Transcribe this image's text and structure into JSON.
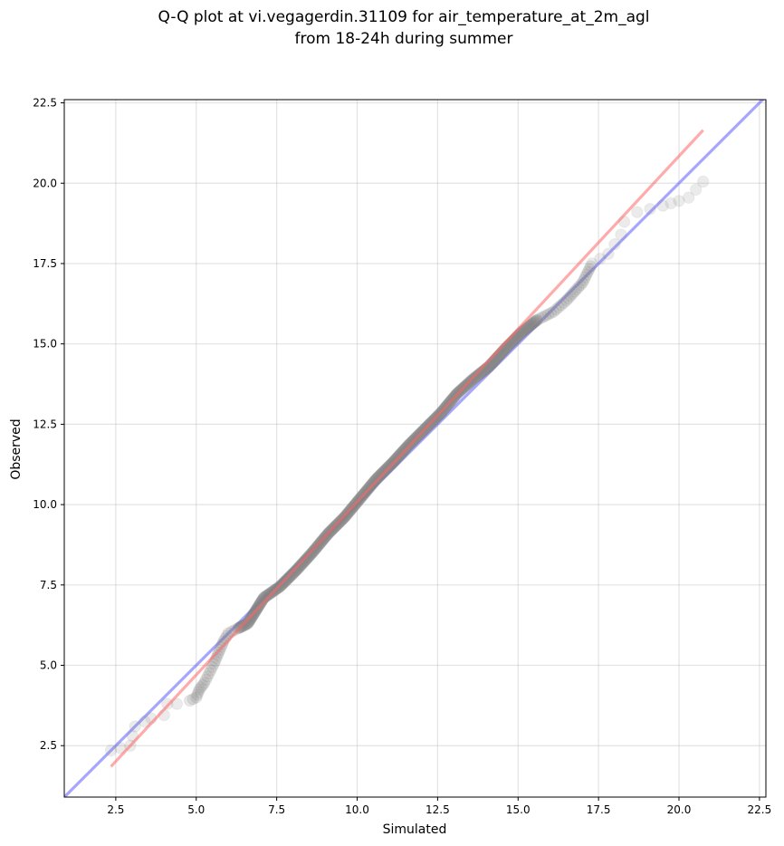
{
  "chart_data": {
    "type": "scatter",
    "title": "Q-Q plot at vi.vegagerdin.31109 for air_temperature_at_2m_agl",
    "subtitle": "from 18-24h during summer",
    "xlabel": "Simulated",
    "ylabel": "Observed",
    "xlim": [
      0.9,
      22.7
    ],
    "ylim": [
      0.9,
      22.6
    ],
    "xticks": [
      "2.5",
      "5.0",
      "7.5",
      "10.0",
      "12.5",
      "15.0",
      "17.5",
      "20.0",
      "22.5"
    ],
    "yticks": [
      "2.5",
      "5.0",
      "7.5",
      "10.0",
      "12.5",
      "15.0",
      "17.5",
      "20.0",
      "22.5"
    ],
    "grid": true,
    "colors": {
      "points": "#808080",
      "fit_line": "#ff6666",
      "identity_line": "#6b6bff"
    },
    "quantile_points": [
      [
        2.35,
        2.35
      ],
      [
        2.95,
        2.5
      ],
      [
        3.1,
        3.1
      ],
      [
        3.4,
        3.25
      ],
      [
        3.6,
        3.35
      ],
      [
        4.0,
        3.45
      ],
      [
        4.1,
        3.8
      ],
      [
        4.4,
        3.8
      ],
      [
        4.8,
        3.9
      ],
      [
        5.0,
        4.0
      ],
      [
        5.1,
        4.25
      ],
      [
        5.25,
        4.45
      ],
      [
        5.4,
        4.75
      ],
      [
        5.55,
        5.05
      ],
      [
        5.7,
        5.4
      ],
      [
        5.85,
        5.75
      ],
      [
        6.0,
        6.0
      ],
      [
        6.3,
        6.15
      ],
      [
        6.6,
        6.3
      ],
      [
        6.85,
        6.7
      ],
      [
        7.1,
        7.1
      ],
      [
        7.6,
        7.45
      ],
      [
        8.1,
        7.95
      ],
      [
        8.6,
        8.5
      ],
      [
        9.1,
        9.1
      ],
      [
        9.6,
        9.6
      ],
      [
        10.1,
        10.2
      ],
      [
        10.6,
        10.8
      ],
      [
        11.1,
        11.3
      ],
      [
        11.6,
        11.85
      ],
      [
        12.1,
        12.35
      ],
      [
        12.6,
        12.85
      ],
      [
        13.1,
        13.45
      ],
      [
        13.6,
        13.9
      ],
      [
        14.1,
        14.3
      ],
      [
        14.6,
        14.85
      ],
      [
        15.1,
        15.35
      ],
      [
        15.6,
        15.75
      ],
      [
        16.1,
        16.0
      ],
      [
        16.5,
        16.35
      ],
      [
        17.0,
        16.9
      ],
      [
        17.3,
        17.5
      ],
      [
        17.8,
        17.8
      ],
      [
        18.2,
        18.4
      ],
      [
        18.3,
        18.8
      ],
      [
        18.7,
        19.1
      ],
      [
        19.5,
        19.3
      ],
      [
        20.0,
        19.45
      ],
      [
        20.3,
        19.55
      ],
      [
        20.75,
        20.05
      ]
    ],
    "fit_line": {
      "x": [
        2.35,
        20.75
      ],
      "y": [
        1.85,
        21.65
      ]
    },
    "identity_line": {
      "x": [
        0.9,
        22.7
      ],
      "y": [
        0.9,
        22.7
      ]
    }
  }
}
